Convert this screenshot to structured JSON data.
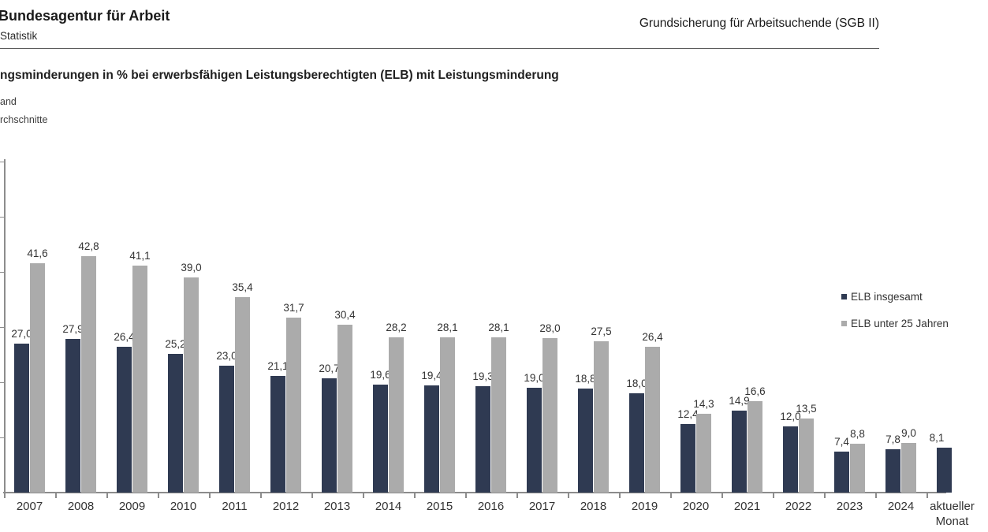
{
  "header": {
    "brand": "Bundesagentur für Arbeit",
    "statistik": "Statistik",
    "right": "Grundsicherung für Arbeitsuchende (SGB II)"
  },
  "title_block": {
    "title": "ngsminderungen in % bei erwerbsfähigen Leistungsberechtigten (ELB) mit Leistungsminderung",
    "line1": "and",
    "line2": "rchschnitte"
  },
  "legend": {
    "items": [
      {
        "label": "ELB insgesamt",
        "color": "#2f3a52"
      },
      {
        "label": "ELB unter 25 Jahren",
        "color": "#ababab"
      }
    ]
  },
  "colors": {
    "series1": "#2f3a52",
    "series2": "#ababab",
    "axis": "#8c8c8c",
    "text": "#333333"
  },
  "chart_data": {
    "type": "bar",
    "title": "ngsminderungen in % bei erwerbsfähigen Leistungsberechtigten (ELB) mit Leistungsminderung",
    "xlabel": "",
    "ylabel": "",
    "ylim": [
      0,
      60
    ],
    "ytick_step": 10,
    "ytick_labels_visible": false,
    "grid": false,
    "value_labels": true,
    "decimal_separator": ",",
    "legend_position": "right",
    "categories": [
      "2007",
      "2008",
      "2009",
      "2010",
      "2011",
      "2012",
      "2013",
      "2014",
      "2015",
      "2016",
      "2017",
      "2018",
      "2019",
      "2020",
      "2021",
      "2022",
      "2023",
      "2024",
      "aktueller Monat"
    ],
    "series": [
      {
        "name": "ELB insgesamt",
        "color": "#2f3a52",
        "values": [
          27.0,
          27.9,
          26.4,
          25.2,
          23.0,
          21.1,
          20.7,
          19.6,
          19.4,
          19.3,
          19.0,
          18.8,
          18.0,
          12.4,
          14.9,
          12.0,
          7.4,
          7.8,
          8.1
        ]
      },
      {
        "name": "ELB unter 25 Jahren",
        "color": "#ababab",
        "values": [
          41.6,
          42.8,
          41.1,
          39.0,
          35.4,
          31.7,
          30.4,
          28.2,
          28.1,
          28.1,
          28.0,
          27.5,
          26.4,
          14.3,
          16.6,
          13.5,
          8.8,
          9.0,
          null
        ]
      }
    ]
  }
}
